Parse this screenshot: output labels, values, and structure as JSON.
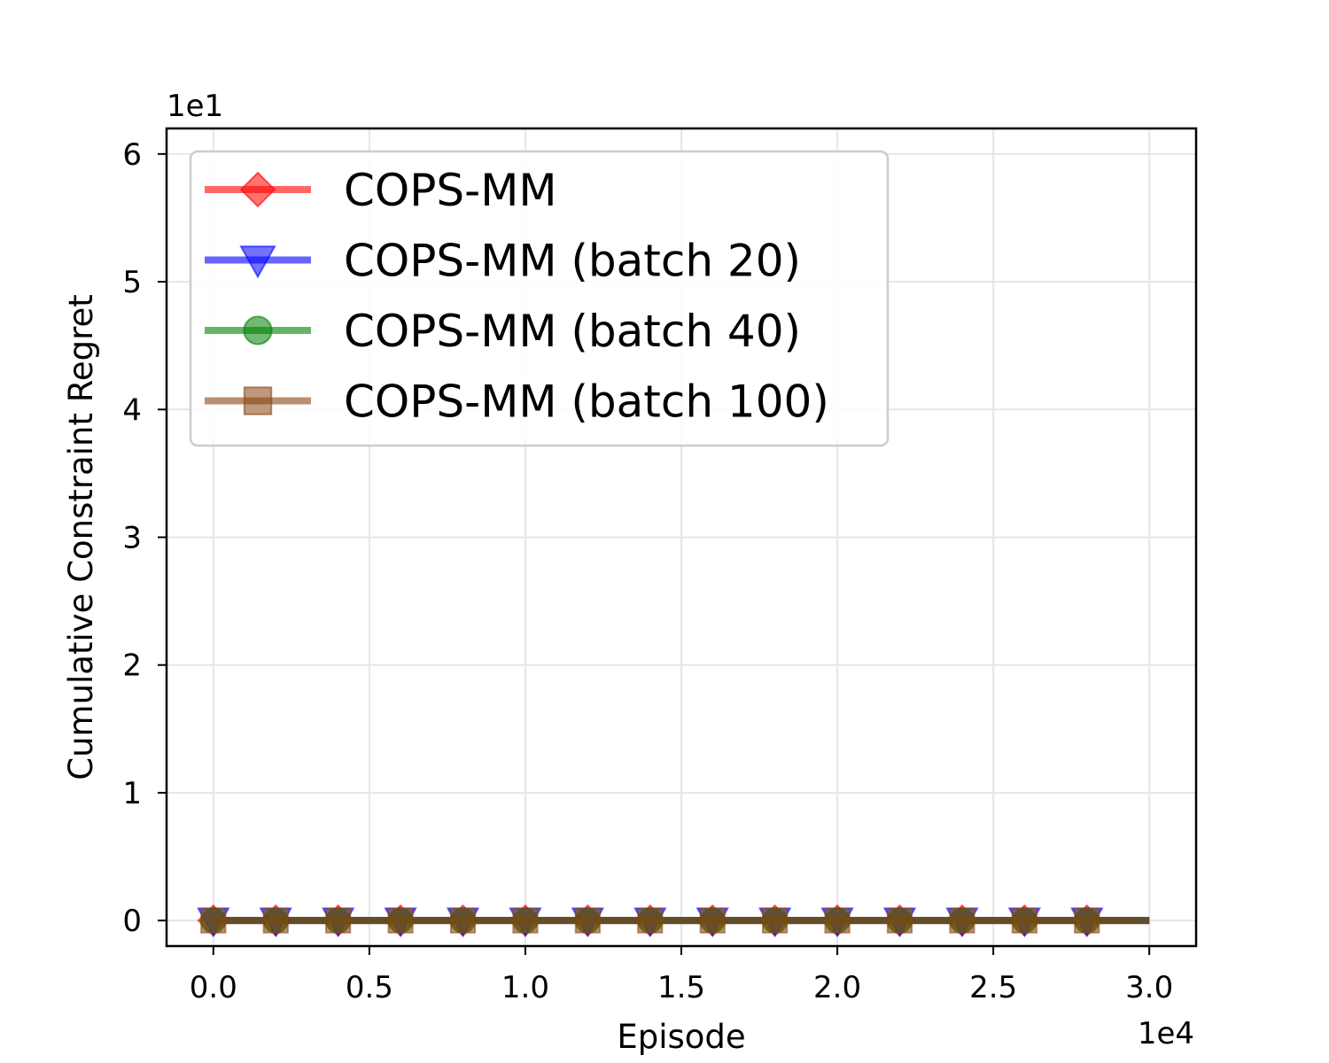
{
  "chart_data": {
    "type": "line",
    "xlabel": "Episode",
    "ylabel": "Cumulative Constraint Regret",
    "x_offset_label": "1e4",
    "y_offset_label": "1e1",
    "xlim": [
      -0.15,
      3.15
    ],
    "ylim": [
      -0.2,
      6.2
    ],
    "x_ticks": [
      0.0,
      0.5,
      1.0,
      1.5,
      2.0,
      2.5,
      3.0
    ],
    "x_tick_labels": [
      "0.0",
      "0.5",
      "1.0",
      "1.5",
      "2.0",
      "2.5",
      "3.0"
    ],
    "y_ticks": [
      0,
      1,
      2,
      3,
      4,
      5,
      6
    ],
    "y_tick_labels": [
      "0",
      "1",
      "2",
      "3",
      "4",
      "5",
      "6"
    ],
    "grid": true,
    "legend_position": "top-left",
    "x": [
      0.0,
      0.2,
      0.4,
      0.6,
      0.8,
      1.0,
      1.2,
      1.4,
      1.6,
      1.8,
      2.0,
      2.2,
      2.4,
      2.6,
      2.8,
      3.0
    ],
    "series": [
      {
        "name": "COPS-MM",
        "color": "#ff0000",
        "marker": "diamond",
        "values": [
          0,
          0,
          0,
          0,
          0,
          0,
          0,
          0,
          0,
          0,
          0,
          0,
          0,
          0,
          0,
          0
        ]
      },
      {
        "name": "COPS-MM (batch 20)",
        "color": "#0000ff",
        "marker": "triangle-down",
        "values": [
          0,
          0,
          0,
          0,
          0,
          0,
          0,
          0,
          0,
          0,
          0,
          0,
          0,
          0,
          0,
          0
        ]
      },
      {
        "name": "COPS-MM (batch 40)",
        "color": "#008000",
        "marker": "circle",
        "values": [
          0,
          0,
          0,
          0,
          0,
          0,
          0,
          0,
          0,
          0,
          0,
          0,
          0,
          0,
          0,
          0
        ]
      },
      {
        "name": "COPS-MM (batch 100)",
        "color": "#8b4513",
        "marker": "square",
        "values": [
          0,
          0,
          0,
          0,
          0,
          0,
          0,
          0,
          0,
          0,
          0,
          0,
          0,
          0,
          0,
          0
        ]
      }
    ]
  }
}
